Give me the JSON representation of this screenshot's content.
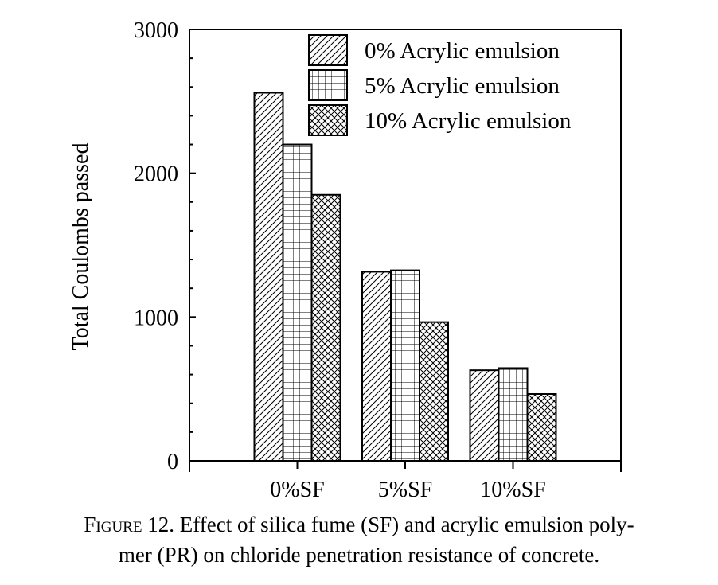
{
  "chart_data": {
    "type": "bar",
    "categories": [
      "0%SF",
      "5%SF",
      "10%SF"
    ],
    "series": [
      {
        "name": "0% Acrylic emulsion",
        "values": [
          2560,
          1315,
          630
        ]
      },
      {
        "name": "5% Acrylic emulsion",
        "values": [
          2200,
          1325,
          645
        ]
      },
      {
        "name": "10% Acrylic emulsion",
        "values": [
          1850,
          965,
          465
        ]
      }
    ],
    "title": "",
    "xlabel": "",
    "ylabel": "Total Coulombs passed",
    "ylim": [
      0,
      3000
    ],
    "yticks": [
      0,
      1000,
      2000,
      3000
    ],
    "y_minor_step": 200,
    "legend_position": "top-right",
    "grid": false,
    "patterns": [
      "diagonal-hatch",
      "square-grid",
      "cross-hatch"
    ]
  },
  "caption": {
    "label": "Figure 12.",
    "line1": "Effect of silica fume (SF) and acrylic emulsion poly-",
    "line2": "mer (PR) on chloride penetration resistance of concrete."
  }
}
